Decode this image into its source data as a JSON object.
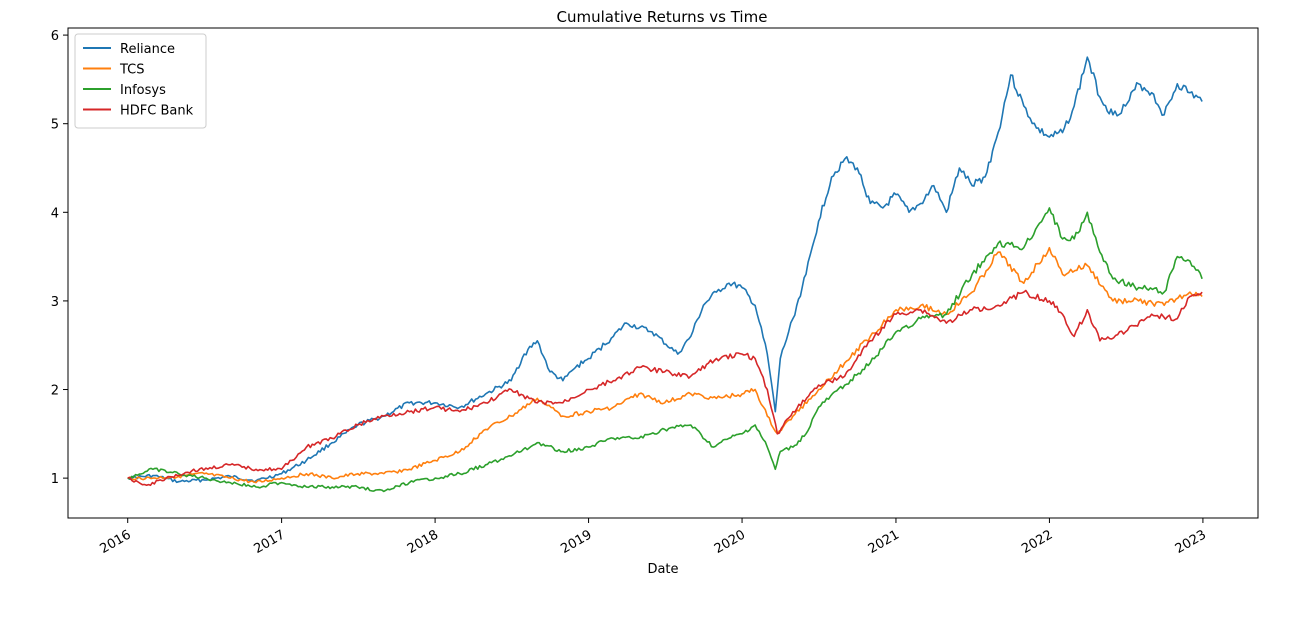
{
  "chart_data": {
    "type": "line",
    "title": "Cumulative Returns vs Time",
    "xlabel": "Date",
    "ylabel": "",
    "xlim": [
      "2015-08-12",
      "2023-05-12"
    ],
    "ylim": [
      0.55,
      6.08
    ],
    "x_ticks": [
      "2016",
      "2017",
      "2018",
      "2019",
      "2020",
      "2021",
      "2022",
      "2023"
    ],
    "y_ticks": [
      1,
      2,
      3,
      4,
      5,
      6
    ],
    "grid": false,
    "legend_position": "top-left",
    "series": [
      {
        "name": "Reliance",
        "color": "#1f77b4",
        "points": [
          [
            "2016-01-01",
            1.0
          ],
          [
            "2016-03-01",
            1.03
          ],
          [
            "2016-05-01",
            0.96
          ],
          [
            "2016-07-01",
            0.98
          ],
          [
            "2016-09-01",
            1.02
          ],
          [
            "2016-11-01",
            0.97
          ],
          [
            "2017-01-01",
            1.05
          ],
          [
            "2017-03-01",
            1.2
          ],
          [
            "2017-05-01",
            1.4
          ],
          [
            "2017-07-01",
            1.6
          ],
          [
            "2017-09-01",
            1.7
          ],
          [
            "2017-11-01",
            1.85
          ],
          [
            "2018-01-01",
            1.85
          ],
          [
            "2018-03-01",
            1.8
          ],
          [
            "2018-05-01",
            1.95
          ],
          [
            "2018-07-01",
            2.1
          ],
          [
            "2018-08-01",
            2.4
          ],
          [
            "2018-09-01",
            2.55
          ],
          [
            "2018-10-01",
            2.2
          ],
          [
            "2018-11-01",
            2.1
          ],
          [
            "2018-12-01",
            2.25
          ],
          [
            "2019-01-01",
            2.35
          ],
          [
            "2019-03-01",
            2.6
          ],
          [
            "2019-04-01",
            2.75
          ],
          [
            "2019-06-01",
            2.65
          ],
          [
            "2019-08-01",
            2.4
          ],
          [
            "2019-09-01",
            2.6
          ],
          [
            "2019-10-01",
            2.95
          ],
          [
            "2019-11-01",
            3.1
          ],
          [
            "2019-12-01",
            3.2
          ],
          [
            "2020-01-01",
            3.15
          ],
          [
            "2020-02-01",
            2.95
          ],
          [
            "2020-03-01",
            2.4
          ],
          [
            "2020-03-20",
            1.75
          ],
          [
            "2020-04-01",
            2.35
          ],
          [
            "2020-05-01",
            2.8
          ],
          [
            "2020-06-01",
            3.3
          ],
          [
            "2020-07-01",
            3.9
          ],
          [
            "2020-08-01",
            4.4
          ],
          [
            "2020-09-01",
            4.6
          ],
          [
            "2020-10-01",
            4.5
          ],
          [
            "2020-11-01",
            4.1
          ],
          [
            "2020-12-01",
            4.05
          ],
          [
            "2021-01-01",
            4.2
          ],
          [
            "2021-02-01",
            4.0
          ],
          [
            "2021-03-01",
            4.1
          ],
          [
            "2021-04-01",
            4.3
          ],
          [
            "2021-05-01",
            4.0
          ],
          [
            "2021-06-01",
            4.5
          ],
          [
            "2021-07-01",
            4.3
          ],
          [
            "2021-08-01",
            4.4
          ],
          [
            "2021-09-01",
            4.9
          ],
          [
            "2021-10-01",
            5.55
          ],
          [
            "2021-11-01",
            5.2
          ],
          [
            "2021-12-01",
            4.95
          ],
          [
            "2022-01-01",
            4.85
          ],
          [
            "2022-02-01",
            4.9
          ],
          [
            "2022-03-01",
            5.2
          ],
          [
            "2022-04-01",
            5.75
          ],
          [
            "2022-05-01",
            5.3
          ],
          [
            "2022-06-01",
            5.1
          ],
          [
            "2022-07-01",
            5.2
          ],
          [
            "2022-08-01",
            5.45
          ],
          [
            "2022-09-01",
            5.35
          ],
          [
            "2022-10-01",
            5.1
          ],
          [
            "2022-11-01",
            5.45
          ],
          [
            "2022-12-01",
            5.35
          ],
          [
            "2022-12-30",
            5.25
          ]
        ]
      },
      {
        "name": "TCS",
        "color": "#ff7f0e",
        "points": [
          [
            "2016-01-01",
            1.0
          ],
          [
            "2016-03-01",
            1.0
          ],
          [
            "2016-05-01",
            1.02
          ],
          [
            "2016-07-01",
            1.05
          ],
          [
            "2016-09-01",
            1.0
          ],
          [
            "2016-11-01",
            0.95
          ],
          [
            "2017-01-01",
            1.0
          ],
          [
            "2017-03-01",
            1.05
          ],
          [
            "2017-05-01",
            1.0
          ],
          [
            "2017-07-01",
            1.05
          ],
          [
            "2017-09-01",
            1.05
          ],
          [
            "2017-11-01",
            1.1
          ],
          [
            "2018-01-01",
            1.2
          ],
          [
            "2018-03-01",
            1.3
          ],
          [
            "2018-05-01",
            1.55
          ],
          [
            "2018-07-01",
            1.7
          ],
          [
            "2018-09-01",
            1.9
          ],
          [
            "2018-11-01",
            1.7
          ],
          [
            "2019-01-01",
            1.75
          ],
          [
            "2019-03-01",
            1.8
          ],
          [
            "2019-05-01",
            1.95
          ],
          [
            "2019-07-01",
            1.85
          ],
          [
            "2019-09-01",
            1.95
          ],
          [
            "2019-11-01",
            1.9
          ],
          [
            "2020-01-01",
            1.95
          ],
          [
            "2020-02-01",
            2.0
          ],
          [
            "2020-03-01",
            1.7
          ],
          [
            "2020-03-25",
            1.5
          ],
          [
            "2020-05-01",
            1.7
          ],
          [
            "2020-07-01",
            2.0
          ],
          [
            "2020-09-01",
            2.3
          ],
          [
            "2020-11-01",
            2.6
          ],
          [
            "2021-01-01",
            2.9
          ],
          [
            "2021-03-01",
            2.95
          ],
          [
            "2021-05-01",
            2.85
          ],
          [
            "2021-07-01",
            3.1
          ],
          [
            "2021-09-01",
            3.55
          ],
          [
            "2021-11-01",
            3.2
          ],
          [
            "2022-01-01",
            3.6
          ],
          [
            "2022-02-01",
            3.3
          ],
          [
            "2022-04-01",
            3.4
          ],
          [
            "2022-06-01",
            3.0
          ],
          [
            "2022-08-01",
            3.0
          ],
          [
            "2022-10-01",
            2.95
          ],
          [
            "2022-12-01",
            3.1
          ],
          [
            "2022-12-30",
            3.05
          ]
        ]
      },
      {
        "name": "Infosys",
        "color": "#2ca02c",
        "points": [
          [
            "2016-01-01",
            1.0
          ],
          [
            "2016-03-01",
            1.1
          ],
          [
            "2016-05-01",
            1.05
          ],
          [
            "2016-07-01",
            1.0
          ],
          [
            "2016-09-01",
            0.95
          ],
          [
            "2016-11-01",
            0.9
          ],
          [
            "2017-01-01",
            0.95
          ],
          [
            "2017-03-01",
            0.9
          ],
          [
            "2017-05-01",
            0.9
          ],
          [
            "2017-07-01",
            0.9
          ],
          [
            "2017-09-01",
            0.85
          ],
          [
            "2017-11-01",
            0.95
          ],
          [
            "2018-01-01",
            1.0
          ],
          [
            "2018-03-01",
            1.05
          ],
          [
            "2018-05-01",
            1.15
          ],
          [
            "2018-07-01",
            1.25
          ],
          [
            "2018-09-01",
            1.4
          ],
          [
            "2018-11-01",
            1.3
          ],
          [
            "2019-01-01",
            1.35
          ],
          [
            "2019-03-01",
            1.45
          ],
          [
            "2019-05-01",
            1.45
          ],
          [
            "2019-07-01",
            1.55
          ],
          [
            "2019-09-01",
            1.6
          ],
          [
            "2019-10-25",
            1.35
          ],
          [
            "2019-12-01",
            1.45
          ],
          [
            "2020-01-01",
            1.5
          ],
          [
            "2020-02-01",
            1.6
          ],
          [
            "2020-03-01",
            1.35
          ],
          [
            "2020-03-20",
            1.1
          ],
          [
            "2020-04-01",
            1.3
          ],
          [
            "2020-05-01",
            1.35
          ],
          [
            "2020-06-01",
            1.5
          ],
          [
            "2020-07-01",
            1.8
          ],
          [
            "2020-09-01",
            2.05
          ],
          [
            "2020-11-01",
            2.3
          ],
          [
            "2021-01-01",
            2.65
          ],
          [
            "2021-03-01",
            2.8
          ],
          [
            "2021-05-01",
            2.85
          ],
          [
            "2021-07-01",
            3.3
          ],
          [
            "2021-09-01",
            3.65
          ],
          [
            "2021-11-01",
            3.6
          ],
          [
            "2022-01-01",
            4.05
          ],
          [
            "2022-02-01",
            3.7
          ],
          [
            "2022-03-01",
            3.7
          ],
          [
            "2022-04-01",
            4.0
          ],
          [
            "2022-05-01",
            3.55
          ],
          [
            "2022-06-01",
            3.25
          ],
          [
            "2022-08-01",
            3.15
          ],
          [
            "2022-10-01",
            3.1
          ],
          [
            "2022-11-01",
            3.5
          ],
          [
            "2022-12-01",
            3.45
          ],
          [
            "2022-12-30",
            3.25
          ]
        ]
      },
      {
        "name": "HDFC Bank",
        "color": "#d62728",
        "points": [
          [
            "2016-01-01",
            1.0
          ],
          [
            "2016-02-15",
            0.92
          ],
          [
            "2016-04-01",
            1.0
          ],
          [
            "2016-06-01",
            1.08
          ],
          [
            "2016-09-01",
            1.15
          ],
          [
            "2016-11-01",
            1.1
          ],
          [
            "2017-01-01",
            1.1
          ],
          [
            "2017-03-01",
            1.35
          ],
          [
            "2017-05-01",
            1.45
          ],
          [
            "2017-07-01",
            1.6
          ],
          [
            "2017-09-01",
            1.7
          ],
          [
            "2017-11-01",
            1.75
          ],
          [
            "2018-01-01",
            1.8
          ],
          [
            "2018-03-01",
            1.75
          ],
          [
            "2018-05-01",
            1.85
          ],
          [
            "2018-07-01",
            2.0
          ],
          [
            "2018-09-01",
            1.85
          ],
          [
            "2018-11-01",
            1.85
          ],
          [
            "2019-01-01",
            2.0
          ],
          [
            "2019-03-01",
            2.1
          ],
          [
            "2019-05-01",
            2.25
          ],
          [
            "2019-07-01",
            2.2
          ],
          [
            "2019-09-01",
            2.15
          ],
          [
            "2019-11-01",
            2.35
          ],
          [
            "2020-01-01",
            2.4
          ],
          [
            "2020-02-01",
            2.35
          ],
          [
            "2020-03-01",
            2.0
          ],
          [
            "2020-03-25",
            1.5
          ],
          [
            "2020-05-01",
            1.75
          ],
          [
            "2020-07-01",
            2.05
          ],
          [
            "2020-09-01",
            2.15
          ],
          [
            "2020-11-01",
            2.55
          ],
          [
            "2021-01-01",
            2.85
          ],
          [
            "2021-03-01",
            2.9
          ],
          [
            "2021-05-01",
            2.75
          ],
          [
            "2021-07-01",
            2.9
          ],
          [
            "2021-09-01",
            2.95
          ],
          [
            "2021-11-01",
            3.1
          ],
          [
            "2022-01-01",
            3.0
          ],
          [
            "2022-02-01",
            2.85
          ],
          [
            "2022-03-01",
            2.6
          ],
          [
            "2022-04-01",
            2.9
          ],
          [
            "2022-05-01",
            2.55
          ],
          [
            "2022-07-01",
            2.65
          ],
          [
            "2022-09-01",
            2.85
          ],
          [
            "2022-11-01",
            2.8
          ],
          [
            "2022-12-01",
            3.05
          ],
          [
            "2022-12-30",
            3.1
          ]
        ]
      }
    ]
  }
}
